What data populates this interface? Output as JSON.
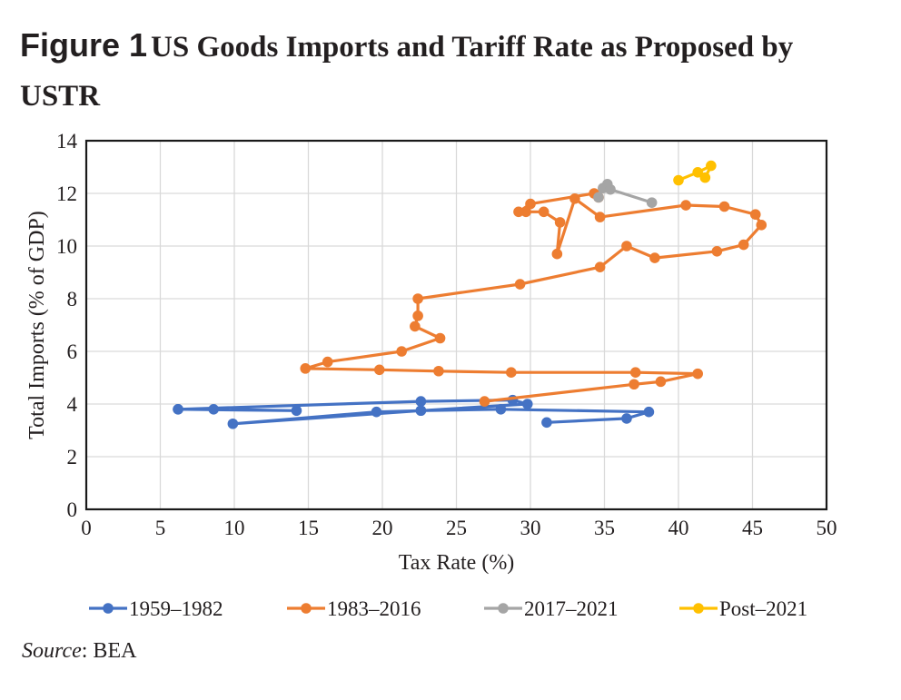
{
  "figure": {
    "label": "Figure 1",
    "title": "US Goods Imports and Tariff Rate as Proposed by USTR",
    "source_label": "Source",
    "source_text": ": BEA"
  },
  "chart_data": {
    "type": "line",
    "xlabel": "Tax Rate (%)",
    "ylabel": "Total Imports (% of GDP)",
    "xlim": [
      0,
      50
    ],
    "ylim": [
      0,
      14
    ],
    "xticks": [
      0,
      5,
      10,
      15,
      20,
      25,
      30,
      35,
      40,
      45,
      50
    ],
    "yticks": [
      0,
      2,
      4,
      6,
      8,
      10,
      12,
      14
    ],
    "grid": true,
    "legend_position": "bottom",
    "series": [
      {
        "name": "1959–1982",
        "color": "#4472C4",
        "points": [
          [
            31.1,
            3.3
          ],
          [
            36.5,
            3.45
          ],
          [
            38.0,
            3.7
          ],
          [
            28.0,
            3.8
          ],
          [
            22.6,
            3.75
          ],
          [
            19.6,
            3.7
          ],
          [
            9.9,
            3.25
          ],
          [
            22.6,
            3.75
          ],
          [
            29.8,
            4.0
          ],
          [
            28.8,
            4.15
          ],
          [
            22.6,
            4.1
          ],
          [
            6.2,
            3.8
          ],
          [
            8.6,
            3.8
          ],
          [
            14.2,
            3.75
          ],
          [
            6.2,
            3.8
          ]
        ]
      },
      {
        "name": "1983–2016",
        "color": "#ED7D31",
        "points": [
          [
            26.9,
            4.1
          ],
          [
            37.0,
            4.75
          ],
          [
            38.8,
            4.85
          ],
          [
            41.3,
            5.15
          ],
          [
            37.1,
            5.2
          ],
          [
            28.7,
            5.2
          ],
          [
            23.8,
            5.25
          ],
          [
            19.8,
            5.3
          ],
          [
            14.8,
            5.35
          ],
          [
            16.3,
            5.6
          ],
          [
            21.3,
            6.0
          ],
          [
            23.9,
            6.5
          ],
          [
            22.2,
            6.95
          ],
          [
            22.4,
            7.35
          ],
          [
            22.4,
            8.0
          ],
          [
            29.3,
            8.55
          ],
          [
            34.7,
            9.2
          ],
          [
            36.5,
            10.0
          ],
          [
            38.4,
            9.55
          ],
          [
            42.6,
            9.8
          ],
          [
            44.4,
            10.05
          ],
          [
            45.6,
            10.8
          ],
          [
            45.2,
            11.2
          ],
          [
            43.1,
            11.5
          ],
          [
            40.5,
            11.55
          ],
          [
            34.7,
            11.1
          ],
          [
            33.0,
            11.8
          ],
          [
            31.8,
            9.7
          ],
          [
            32.0,
            10.9
          ],
          [
            30.9,
            11.3
          ],
          [
            29.7,
            11.3
          ],
          [
            29.2,
            11.3
          ],
          [
            30.0,
            11.6
          ],
          [
            34.3,
            12.0
          ],
          [
            34.6,
            11.85
          ]
        ]
      },
      {
        "name": "2017–2021",
        "color": "#A5A5A5",
        "points": [
          [
            34.6,
            11.85
          ],
          [
            34.9,
            12.2
          ],
          [
            35.2,
            12.35
          ],
          [
            35.4,
            12.15
          ],
          [
            38.2,
            11.65
          ]
        ]
      },
      {
        "name": "Post–2021",
        "color": "#FFC000",
        "points": [
          [
            40.0,
            12.5
          ],
          [
            41.3,
            12.8
          ],
          [
            42.2,
            13.05
          ],
          [
            41.8,
            12.6
          ]
        ]
      }
    ]
  }
}
